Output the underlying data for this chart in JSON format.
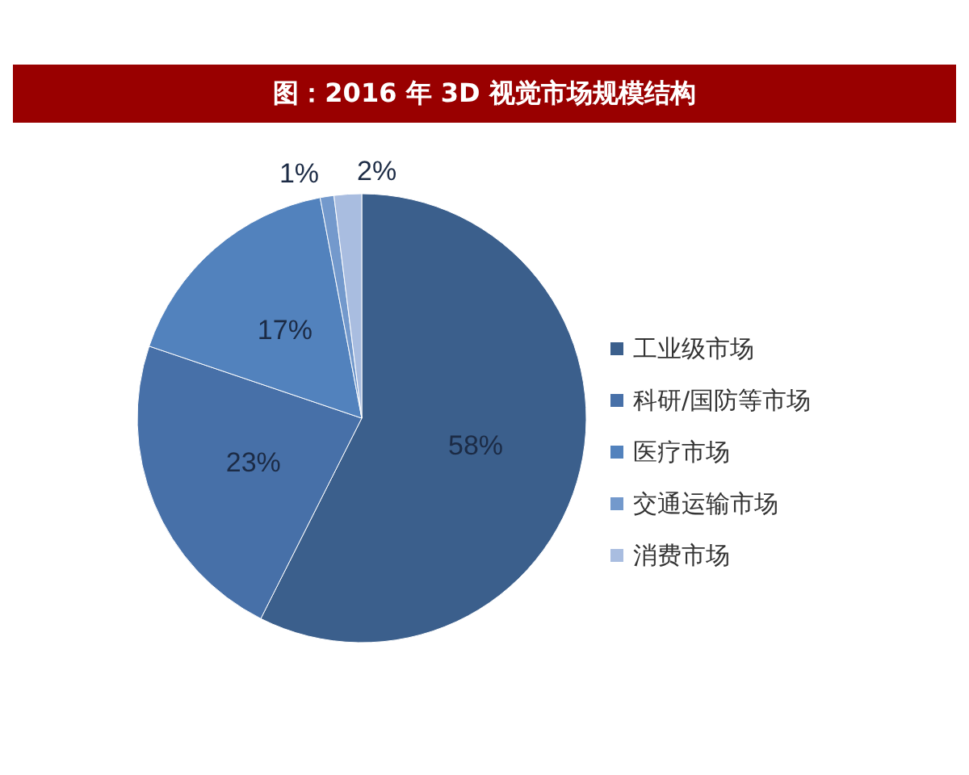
{
  "chart_data": {
    "type": "pie",
    "title": "图：2016 年 3D 视觉市场规模结构",
    "categories": [
      "工业级市场",
      "科研/国防等市场",
      "医疗市场",
      "交通运输市场",
      "消费市场"
    ],
    "values": [
      58,
      23,
      17,
      1,
      2
    ],
    "colors": [
      "#3b5f8c",
      "#4770a8",
      "#5282bd",
      "#7399cc",
      "#a9bde0"
    ],
    "value_labels": [
      "58%",
      "23%",
      "17%",
      "1%",
      "2%"
    ],
    "legend": "right"
  }
}
